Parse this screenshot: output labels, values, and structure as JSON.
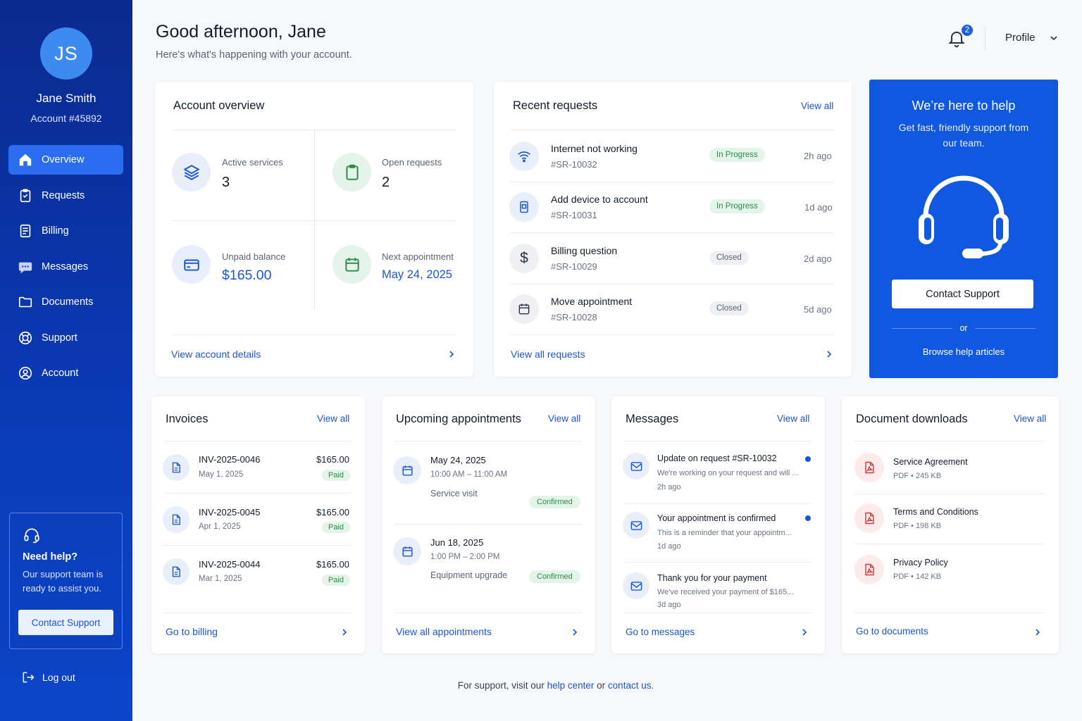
{
  "sidebar": {
    "initials": "JS",
    "name": "Jane Smith",
    "account": "Account #45892",
    "nav": [
      {
        "label": "Overview",
        "icon": "home-icon"
      },
      {
        "label": "Requests",
        "icon": "clipboard-icon"
      },
      {
        "label": "Billing",
        "icon": "receipt-icon"
      },
      {
        "label": "Messages",
        "icon": "chat-icon"
      },
      {
        "label": "Documents",
        "icon": "folder-icon"
      },
      {
        "label": "Support",
        "icon": "lifebuoy-icon"
      },
      {
        "label": "Account",
        "icon": "user-circle-icon"
      }
    ],
    "help": {
      "title": "Need help?",
      "desc": "Our support team is ready to assist you.",
      "button": "Contact Support"
    },
    "logout": "Log out"
  },
  "header": {
    "greeting": "Good afternoon, Jane",
    "subtitle": "Here's what's happening with your account.",
    "notifications": "2",
    "profile": "Profile"
  },
  "overview": {
    "title": "Account overview",
    "stats": [
      {
        "label": "Active services",
        "value": "3"
      },
      {
        "label": "Open requests",
        "value": "2"
      },
      {
        "label": "Unpaid balance",
        "value": "$165.00"
      },
      {
        "label": "Next appointment",
        "value": "May 24, 2025"
      }
    ],
    "footer": "View account details"
  },
  "requests": {
    "title": "Recent requests",
    "view_all": "View all",
    "items": [
      {
        "title": "Internet not working",
        "id": "#SR-10032",
        "status": "In Progress",
        "time": "2h ago"
      },
      {
        "title": "Add device to account",
        "id": "#SR-10031",
        "status": "In Progress",
        "time": "1d ago"
      },
      {
        "title": "Billing question",
        "id": "#SR-10029",
        "status": "Closed",
        "time": "2d ago"
      },
      {
        "title": "Move appointment",
        "id": "#SR-10028",
        "status": "Closed",
        "time": "5d ago"
      }
    ],
    "footer": "View all requests"
  },
  "support_card": {
    "title": "We’re here to help",
    "subtitle": "Get fast, friendly support from our team.",
    "button": "Contact Support",
    "or": "or",
    "browse": "Browse help articles"
  },
  "invoices": {
    "title": "Invoices",
    "view_all": "View all",
    "items": [
      {
        "id": "INV-2025-0046",
        "date": "May 1, 2025",
        "amount": "$165.00",
        "status": "Paid"
      },
      {
        "id": "INV-2025-0045",
        "date": "Apr 1, 2025",
        "amount": "$165.00",
        "status": "Paid"
      },
      {
        "id": "INV-2025-0044",
        "date": "Mar 1, 2025",
        "amount": "$165.00",
        "status": "Paid"
      }
    ],
    "footer": "Go to billing"
  },
  "appointments": {
    "title": "Upcoming appointments",
    "view_all": "View all",
    "items": [
      {
        "date": "May 24, 2025",
        "time": "10:00 AM – 11:00 AM",
        "type": "Service visit",
        "status": "Confirmed"
      },
      {
        "date": "Jun 18, 2025",
        "time": "1:00 PM – 2:00 PM",
        "type": "Equipment upgrade",
        "status": "Confirmed"
      }
    ],
    "footer": "View all appointments"
  },
  "messages": {
    "title": "Messages",
    "view_all": "View all",
    "items": [
      {
        "title": "Update on request #SR-10032",
        "preview": "We're working on your request and will ...",
        "time": "2h ago",
        "unread": true
      },
      {
        "title": "Your appointment is confirmed",
        "preview": "This is a reminder that your appointm...",
        "time": "1d ago",
        "unread": true
      },
      {
        "title": "Thank you for your payment",
        "preview": "We've received your payment of $165...",
        "time": "3d ago",
        "unread": false
      }
    ],
    "footer": "Go to messages"
  },
  "documents": {
    "title": "Document downloads",
    "view_all": "View all",
    "items": [
      {
        "name": "Service Agreement",
        "meta": "PDF • 245 KB"
      },
      {
        "name": "Terms and Conditions",
        "meta": "PDF • 198 KB"
      },
      {
        "name": "Privacy Policy",
        "meta": "PDF • 142 KB"
      }
    ],
    "footer": "Go to documents"
  },
  "page_footer": {
    "prefix": "For support, visit our",
    "help_link": "help center",
    "mid": "or",
    "contact_link": "contact us."
  },
  "colors": {
    "sidebar": "#0b3bb8",
    "accent": "#1c55d6",
    "active_nav": "#2a6df0",
    "support_card": "#1158e0"
  }
}
